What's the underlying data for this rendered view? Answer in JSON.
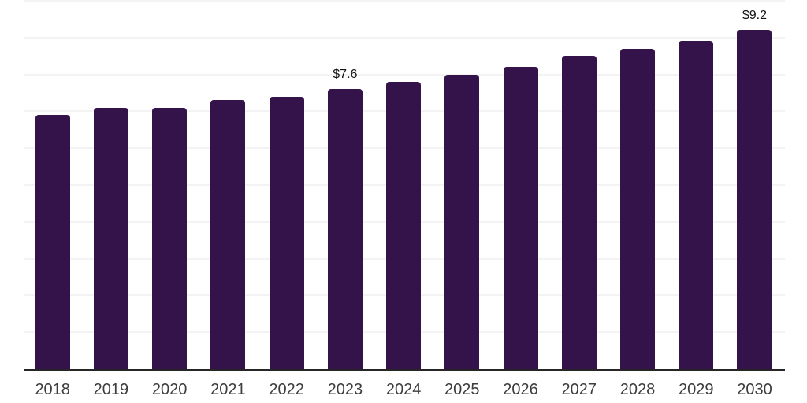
{
  "chart_data": {
    "type": "bar",
    "title": "",
    "xlabel": "",
    "ylabel": "",
    "categories": [
      "2018",
      "2019",
      "2020",
      "2021",
      "2022",
      "2023",
      "2024",
      "2025",
      "2026",
      "2027",
      "2028",
      "2029",
      "2030"
    ],
    "values": [
      6.9,
      7.1,
      7.1,
      7.3,
      7.4,
      7.6,
      7.8,
      8.0,
      8.2,
      8.5,
      8.7,
      8.9,
      9.2
    ],
    "data_labels": {
      "2023": "$7.6",
      "2030": "$9.2"
    },
    "ylim": [
      0,
      10
    ],
    "grid": true,
    "gridline_step": 1,
    "legend": "none",
    "colors": {
      "bar": "#331349",
      "gridline": "#f3f3f3",
      "axis_line": "#262626",
      "tick_label": "#3d3d3d",
      "value_label": "#111111",
      "background": "#ffffff"
    }
  }
}
